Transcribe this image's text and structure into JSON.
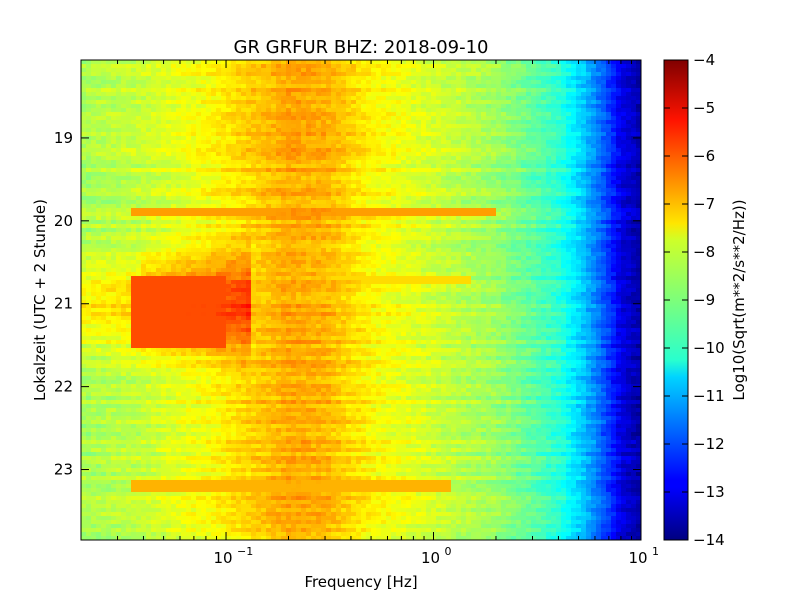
{
  "chart_data": {
    "type": "heatmap",
    "title": "GR GRFUR BHZ: 2018-09-10",
    "xlabel": "Frequency [Hz]",
    "ylabel": "Lokalzeit (UTC + 2 Stunde)",
    "x_scale": "log",
    "xlim": [
      0.02,
      10
    ],
    "x_ticks": [
      {
        "value": 0.1,
        "base": "10",
        "exp": "−1"
      },
      {
        "value": 1,
        "base": "10",
        "exp": "0"
      },
      {
        "value": 10,
        "base": "10",
        "exp": "1"
      }
    ],
    "ylim": [
      18.06,
      23.85
    ],
    "y_inverted": true,
    "y_ticks": [
      "19",
      "20",
      "21",
      "22",
      "23"
    ],
    "y_tick_values": [
      19,
      20,
      21,
      22,
      23
    ],
    "colorbar": {
      "label": "Log10(Sqrt(m**2/s**2/Hz))",
      "colormap": "jet",
      "vmin": -14,
      "vmax": -4,
      "ticks": [
        "−4",
        "−5",
        "−6",
        "−7",
        "−8",
        "−9",
        "−10",
        "−11",
        "−12",
        "−13",
        "−14"
      ],
      "tick_values": [
        -4,
        -5,
        -6,
        -7,
        -8,
        -9,
        -10,
        -11,
        -12,
        -13,
        -14
      ]
    },
    "spectrum_profile": [
      {
        "freq": 0.02,
        "value": -8.6
      },
      {
        "freq": 0.04,
        "value": -8.3
      },
      {
        "freq": 0.06,
        "value": -8.0
      },
      {
        "freq": 0.08,
        "value": -7.8
      },
      {
        "freq": 0.12,
        "value": -7.4
      },
      {
        "freq": 0.2,
        "value": -6.9
      },
      {
        "freq": 0.3,
        "value": -7.0
      },
      {
        "freq": 0.5,
        "value": -7.7
      },
      {
        "freq": 1.0,
        "value": -8.2
      },
      {
        "freq": 2.0,
        "value": -8.7
      },
      {
        "freq": 3.0,
        "value": -9.3
      },
      {
        "freq": 4.0,
        "value": -9.8
      },
      {
        "freq": 5.0,
        "value": -10.6
      },
      {
        "freq": 6.0,
        "value": -11.4
      },
      {
        "freq": 7.0,
        "value": -12.2
      },
      {
        "freq": 8.0,
        "value": -13.0
      },
      {
        "freq": 10.0,
        "value": -13.6
      }
    ],
    "events": [
      {
        "time": 19.88,
        "value": -6.6,
        "fmax": 2.0
      },
      {
        "time": 20.72,
        "value": -7.2,
        "fmax": 1.5
      },
      {
        "time": 21.1,
        "value": -5.8,
        "fmax": 0.1
      },
      {
        "time": 23.2,
        "value": -6.8,
        "fmax": 1.2
      }
    ]
  }
}
